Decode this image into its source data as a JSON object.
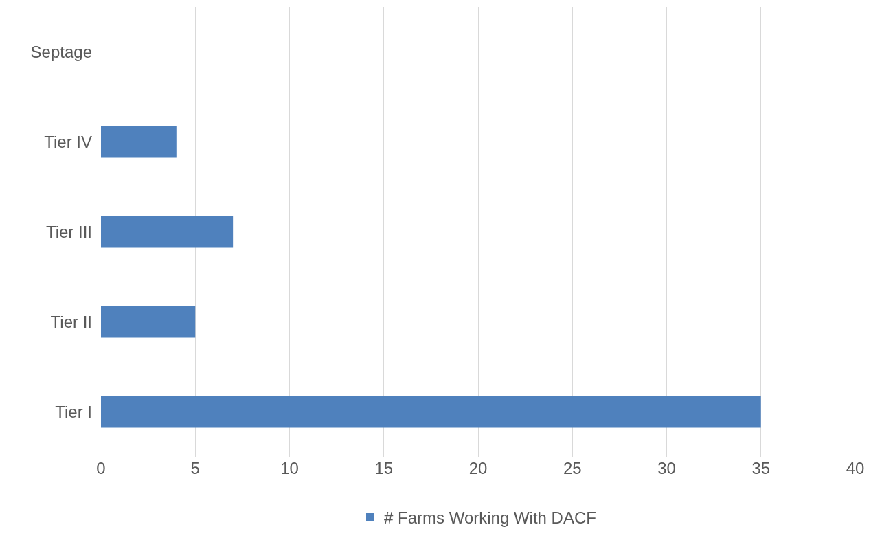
{
  "chart_data": {
    "type": "bar",
    "orientation": "horizontal",
    "categories": [
      "Septage",
      "Tier IV",
      "Tier III",
      "Tier II",
      "Tier I"
    ],
    "series": [
      {
        "name": "# Farms Working With DACF",
        "color": "#4f81bd",
        "values": [
          0,
          4,
          7,
          5,
          35
        ]
      }
    ],
    "xlim": [
      0,
      40
    ],
    "xticks": [
      0,
      5,
      10,
      15,
      20,
      25,
      30,
      35,
      40
    ],
    "grid": "x",
    "legend": "bottom"
  }
}
